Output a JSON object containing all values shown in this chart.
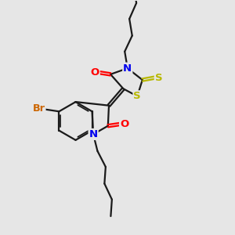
{
  "bg_color": "#e6e6e6",
  "bond_color": "#1a1a1a",
  "atom_colors": {
    "N": "#0000ee",
    "O": "#ff0000",
    "S": "#b8b800",
    "Br": "#cc6600"
  },
  "lw": 1.6,
  "dbo": 0.06
}
